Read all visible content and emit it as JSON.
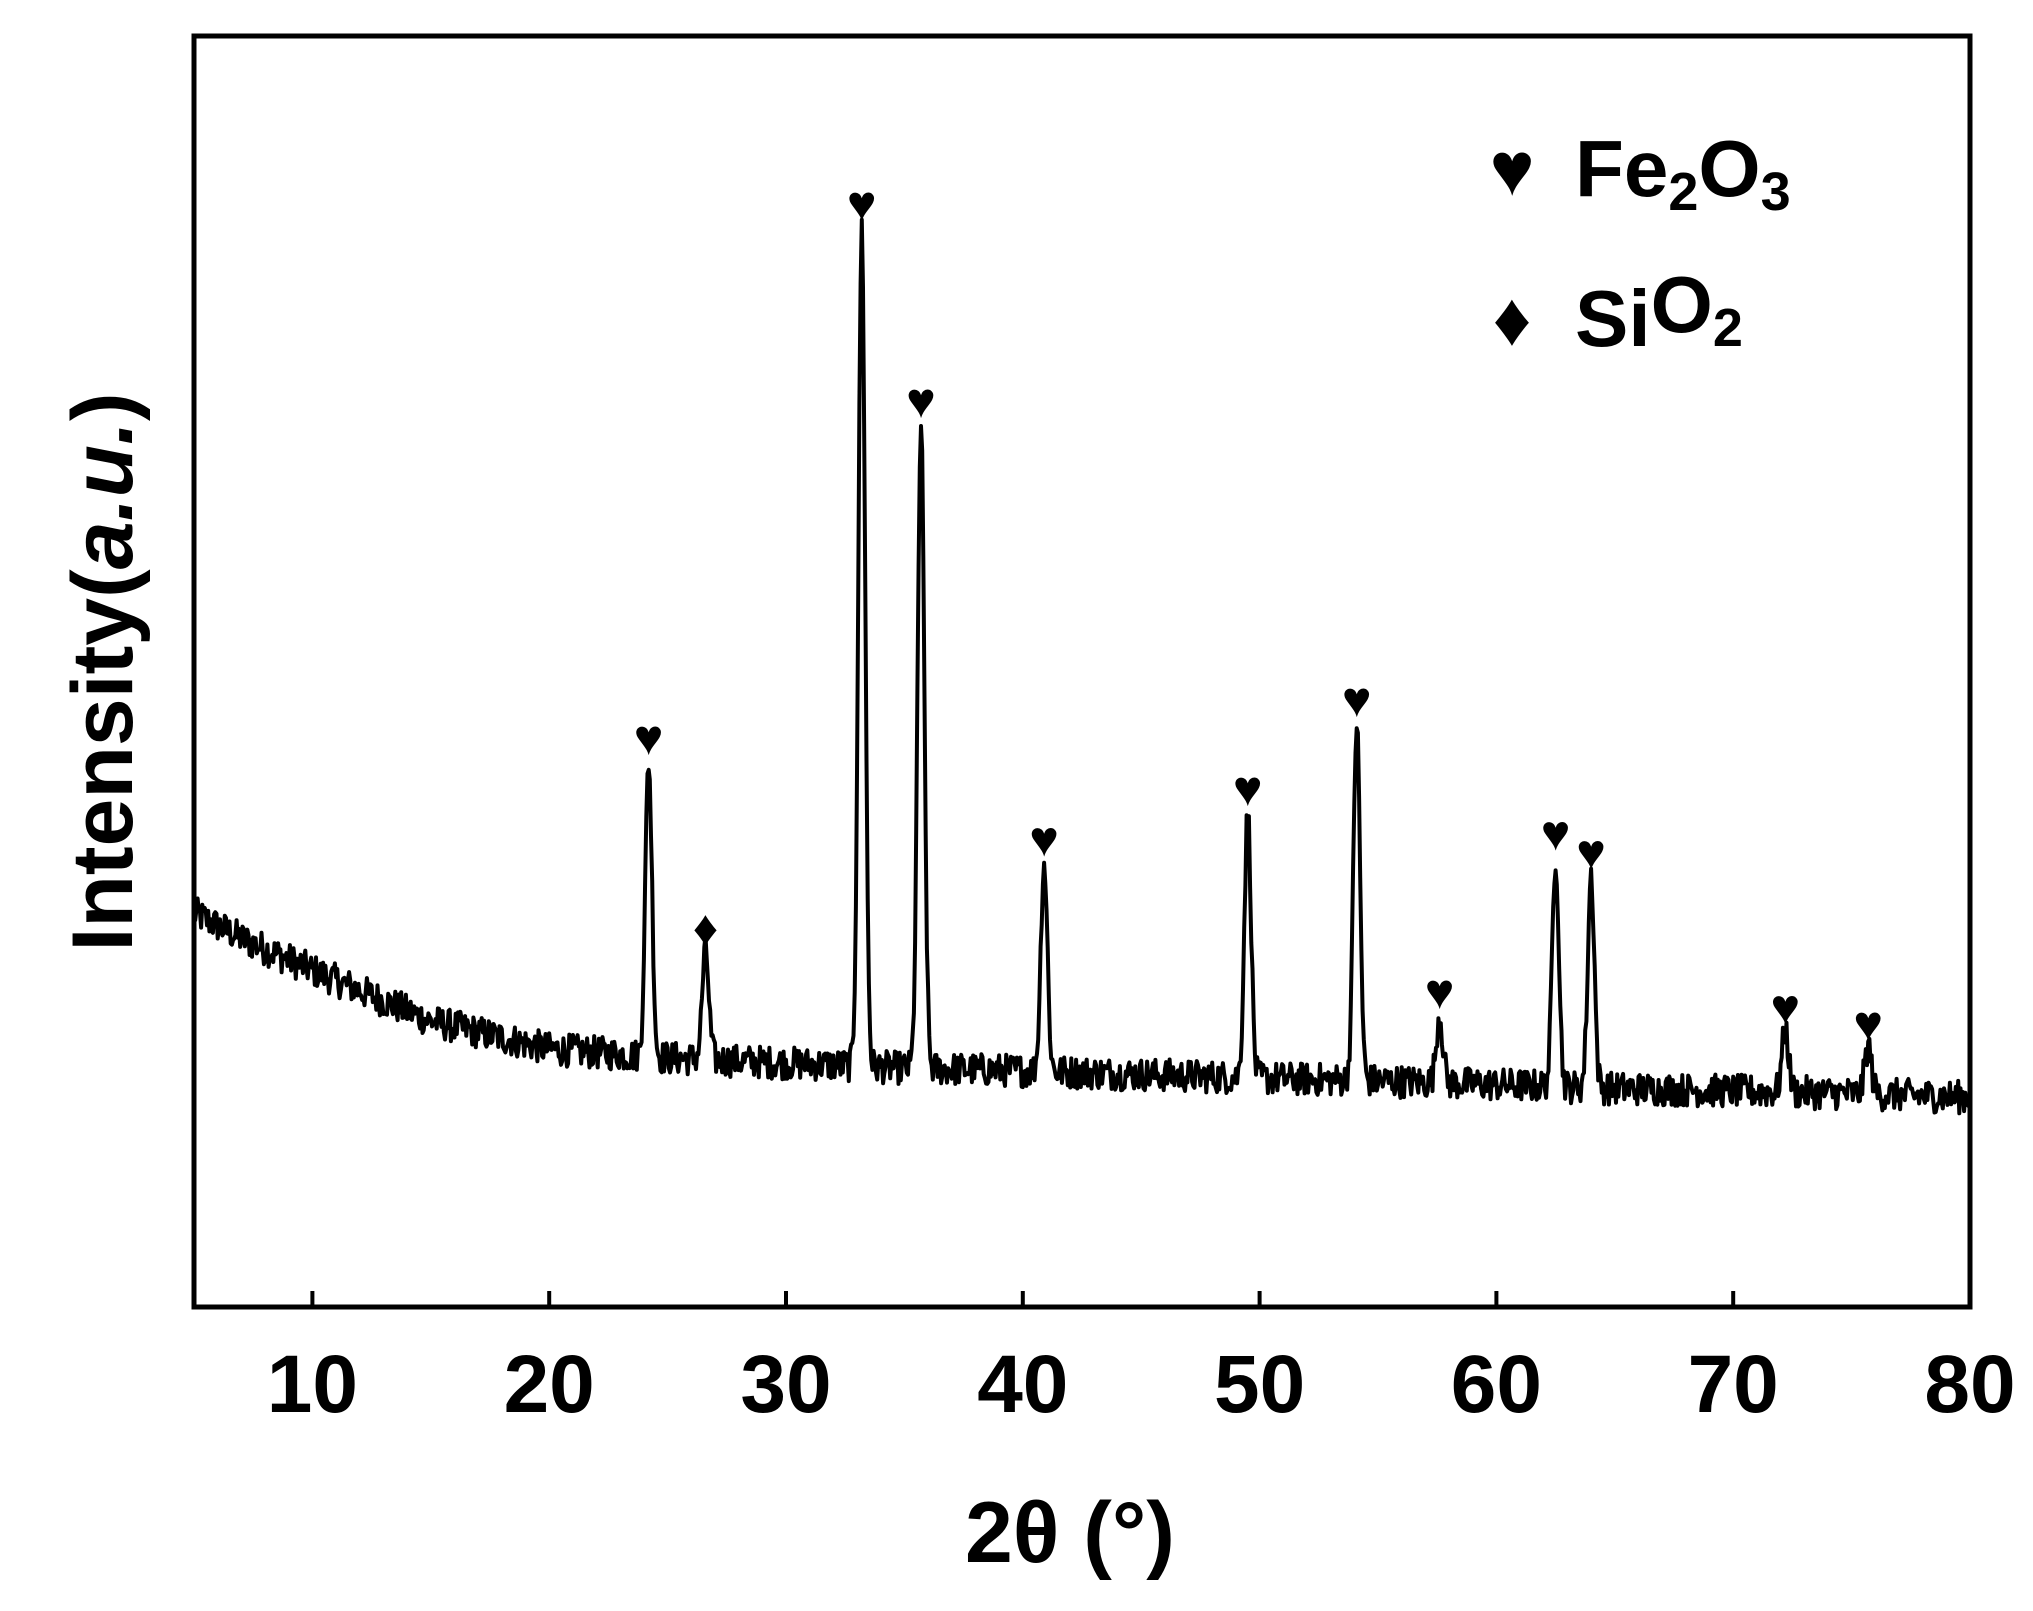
{
  "chart_data": {
    "type": "line",
    "title": "",
    "xlabel": "2θ (°)",
    "ylabel_main": "Intensity(",
    "ylabel_italic": "a.u.",
    "ylabel_close": ")",
    "xlim": [
      5,
      80
    ],
    "ylim": [
      0,
      100
    ],
    "x_ticks": [
      10,
      20,
      30,
      40,
      50,
      60,
      70,
      80
    ],
    "y_ticks_shown": false,
    "grid": false,
    "legend_position": "top-right",
    "legend": [
      {
        "marker": "heart",
        "symbol": "♥",
        "base": "Fe",
        "sub1": "2",
        "mid": "O",
        "sub2": "3"
      },
      {
        "marker": "diamond",
        "symbol": "♦",
        "base": "Si",
        "sub1": "",
        "mid": "O",
        "sub2": "2"
      }
    ],
    "line_color": "#000000",
    "background": {
      "x": [
        5,
        7,
        10,
        15,
        20,
        25,
        30,
        35,
        40,
        45,
        50,
        55,
        60,
        65,
        70,
        75,
        80
      ],
      "y": [
        31,
        29,
        26.5,
        22.5,
        20.3,
        19.6,
        19.2,
        18.8,
        18.6,
        18.3,
        18.0,
        17.8,
        17.5,
        17.2,
        17.0,
        16.8,
        16.5
      ]
    },
    "peaks": [
      {
        "x": 24.2,
        "y": 43,
        "phase": "Fe2O3"
      },
      {
        "x": 26.6,
        "y": 28,
        "phase": "SiO2"
      },
      {
        "x": 33.2,
        "y": 85,
        "phase": "Fe2O3"
      },
      {
        "x": 35.7,
        "y": 69.5,
        "phase": "Fe2O3"
      },
      {
        "x": 40.9,
        "y": 35,
        "phase": "Fe2O3"
      },
      {
        "x": 49.5,
        "y": 39,
        "phase": "Fe2O3"
      },
      {
        "x": 54.1,
        "y": 46,
        "phase": "Fe2O3"
      },
      {
        "x": 57.6,
        "y": 23,
        "phase": "Fe2O3"
      },
      {
        "x": 62.5,
        "y": 35.5,
        "phase": "Fe2O3"
      },
      {
        "x": 64.0,
        "y": 34,
        "phase": "Fe2O3"
      },
      {
        "x": 72.2,
        "y": 21.8,
        "phase": "Fe2O3"
      },
      {
        "x": 75.7,
        "y": 20.5,
        "phase": "Fe2O3"
      }
    ]
  }
}
